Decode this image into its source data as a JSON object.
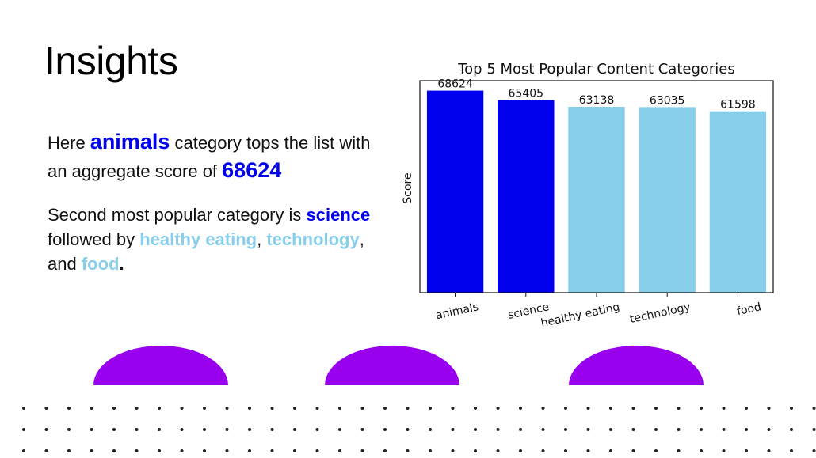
{
  "slide": {
    "title": "Insights"
  },
  "insight1": {
    "prefix": "Here ",
    "top_category": "animals",
    "middle": " category tops the list with an aggregate score of ",
    "top_score": "68624"
  },
  "insight2": {
    "prefix": "Second most popular category is ",
    "second": "science",
    "followed": " followed by ",
    "third": "healthy eating",
    "comma1": ",",
    "space": " ",
    "fourth": "technology",
    "and_text": ", and ",
    "fifth": "food",
    "period": "."
  },
  "colors": {
    "primary_blue": "#0000ee",
    "light_blue": "#87ceeb",
    "decor_purple": "#9900ee"
  },
  "chart_data": {
    "type": "bar",
    "title": "Top 5 Most Popular Content Categories",
    "xlabel": "",
    "ylabel": "Score",
    "categories": [
      "animals",
      "science",
      "healthy eating",
      "technology",
      "food"
    ],
    "values": [
      68624,
      65405,
      63138,
      63035,
      61598
    ],
    "colors": [
      "#0000ee",
      "#0000ee",
      "#87ceeb",
      "#87ceeb",
      "#87ceeb"
    ],
    "ylim": [
      0,
      72000
    ],
    "grid": false,
    "legend": "none"
  }
}
